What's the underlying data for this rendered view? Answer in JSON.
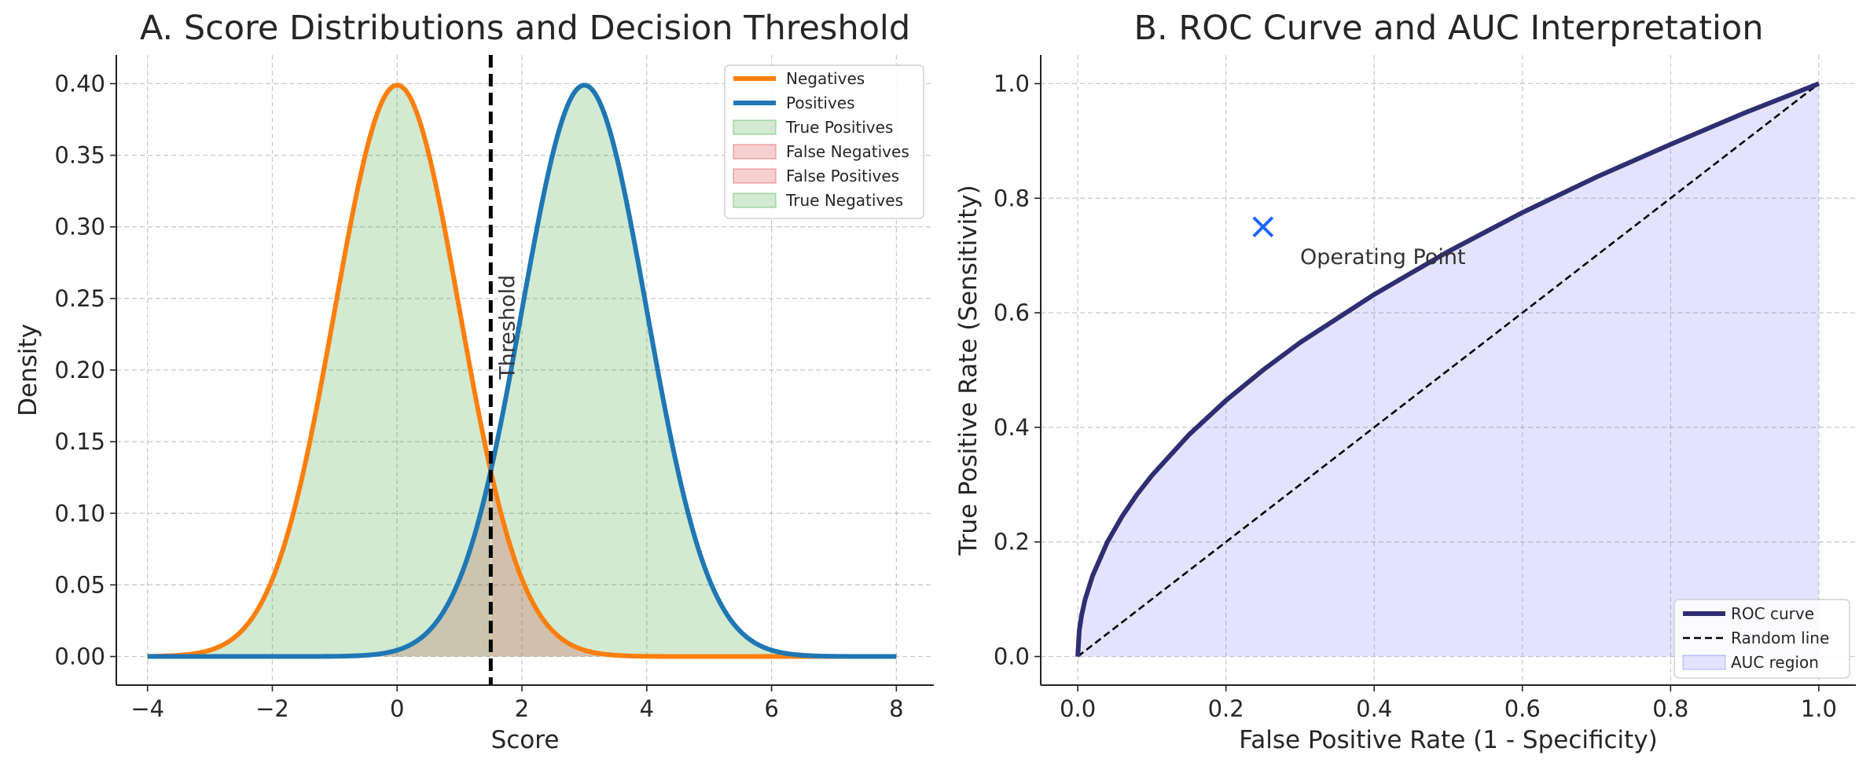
{
  "chart_data": [
    {
      "type": "line",
      "title": "A. Score Distributions and Decision Threshold",
      "xlabel": "Score",
      "ylabel": "Density",
      "xlim": [
        -4.5,
        8.6
      ],
      "ylim": [
        -0.02,
        0.42
      ],
      "xticks": [
        -4,
        -2,
        0,
        2,
        4,
        6,
        8
      ],
      "xtick_labels": [
        "−4",
        "−2",
        "0",
        "2",
        "4",
        "6",
        "8"
      ],
      "yticks": [
        0.0,
        0.05,
        0.1,
        0.15,
        0.2,
        0.25,
        0.3,
        0.35,
        0.4
      ],
      "ytick_labels": [
        "0.00",
        "0.05",
        "0.10",
        "0.15",
        "0.20",
        "0.25",
        "0.30",
        "0.35",
        "0.40"
      ],
      "grid": true,
      "legend_position": "top-right",
      "series": [
        {
          "name": "Negatives",
          "kind": "normal_pdf",
          "mean": 0,
          "sd": 1,
          "x_range": [
            -4,
            8
          ],
          "color": "#ff7f0e"
        },
        {
          "name": "Positives",
          "kind": "normal_pdf",
          "mean": 3,
          "sd": 1,
          "x_range": [
            -4,
            8
          ],
          "color": "#1f77b4"
        }
      ],
      "fills": [
        {
          "name": "True Positives",
          "color": "#2ca02c"
        },
        {
          "name": "False Negatives",
          "color": "#d62728"
        },
        {
          "name": "False Positives",
          "color": "#d62728"
        },
        {
          "name": "True Negatives",
          "color": "#2ca02c"
        }
      ],
      "threshold": {
        "x": 1.5,
        "label": "Threshold"
      }
    },
    {
      "type": "line",
      "title": "B. ROC Curve and AUC Interpretation",
      "xlabel": "False Positive Rate (1 - Specificity)",
      "ylabel": "True Positive Rate (Sensitivity)",
      "xlim": [
        -0.05,
        1.05
      ],
      "ylim": [
        -0.05,
        1.05
      ],
      "xticks": [
        0.0,
        0.2,
        0.4,
        0.6,
        0.8,
        1.0
      ],
      "xtick_labels": [
        "0.0",
        "0.2",
        "0.4",
        "0.6",
        "0.8",
        "1.0"
      ],
      "yticks": [
        0.0,
        0.2,
        0.4,
        0.6,
        0.8,
        1.0
      ],
      "ytick_labels": [
        "0.0",
        "0.2",
        "0.4",
        "0.6",
        "0.8",
        "1.0"
      ],
      "grid": true,
      "legend_position": "lower-right",
      "series": [
        {
          "name": "ROC curve",
          "color": "#2e2e72",
          "x": [
            0,
            0.002,
            0.005,
            0.01,
            0.02,
            0.04,
            0.06,
            0.08,
            0.1,
            0.15,
            0.2,
            0.25,
            0.3,
            0.4,
            0.5,
            0.6,
            0.7,
            0.8,
            0.9,
            1.0
          ],
          "y": [
            0,
            0.045,
            0.071,
            0.1,
            0.141,
            0.2,
            0.245,
            0.283,
            0.316,
            0.387,
            0.447,
            0.5,
            0.548,
            0.632,
            0.707,
            0.775,
            0.837,
            0.894,
            0.949,
            1.0
          ]
        },
        {
          "name": "Random line",
          "color": "#000000",
          "x": [
            0,
            1
          ],
          "y": [
            0,
            1
          ]
        }
      ],
      "fills": [
        {
          "name": "AUC region",
          "color": "#6666ff"
        }
      ],
      "operating_point": {
        "x": 0.25,
        "y": 0.75,
        "label": "Operating Point",
        "color": "#1a66ff"
      }
    }
  ]
}
